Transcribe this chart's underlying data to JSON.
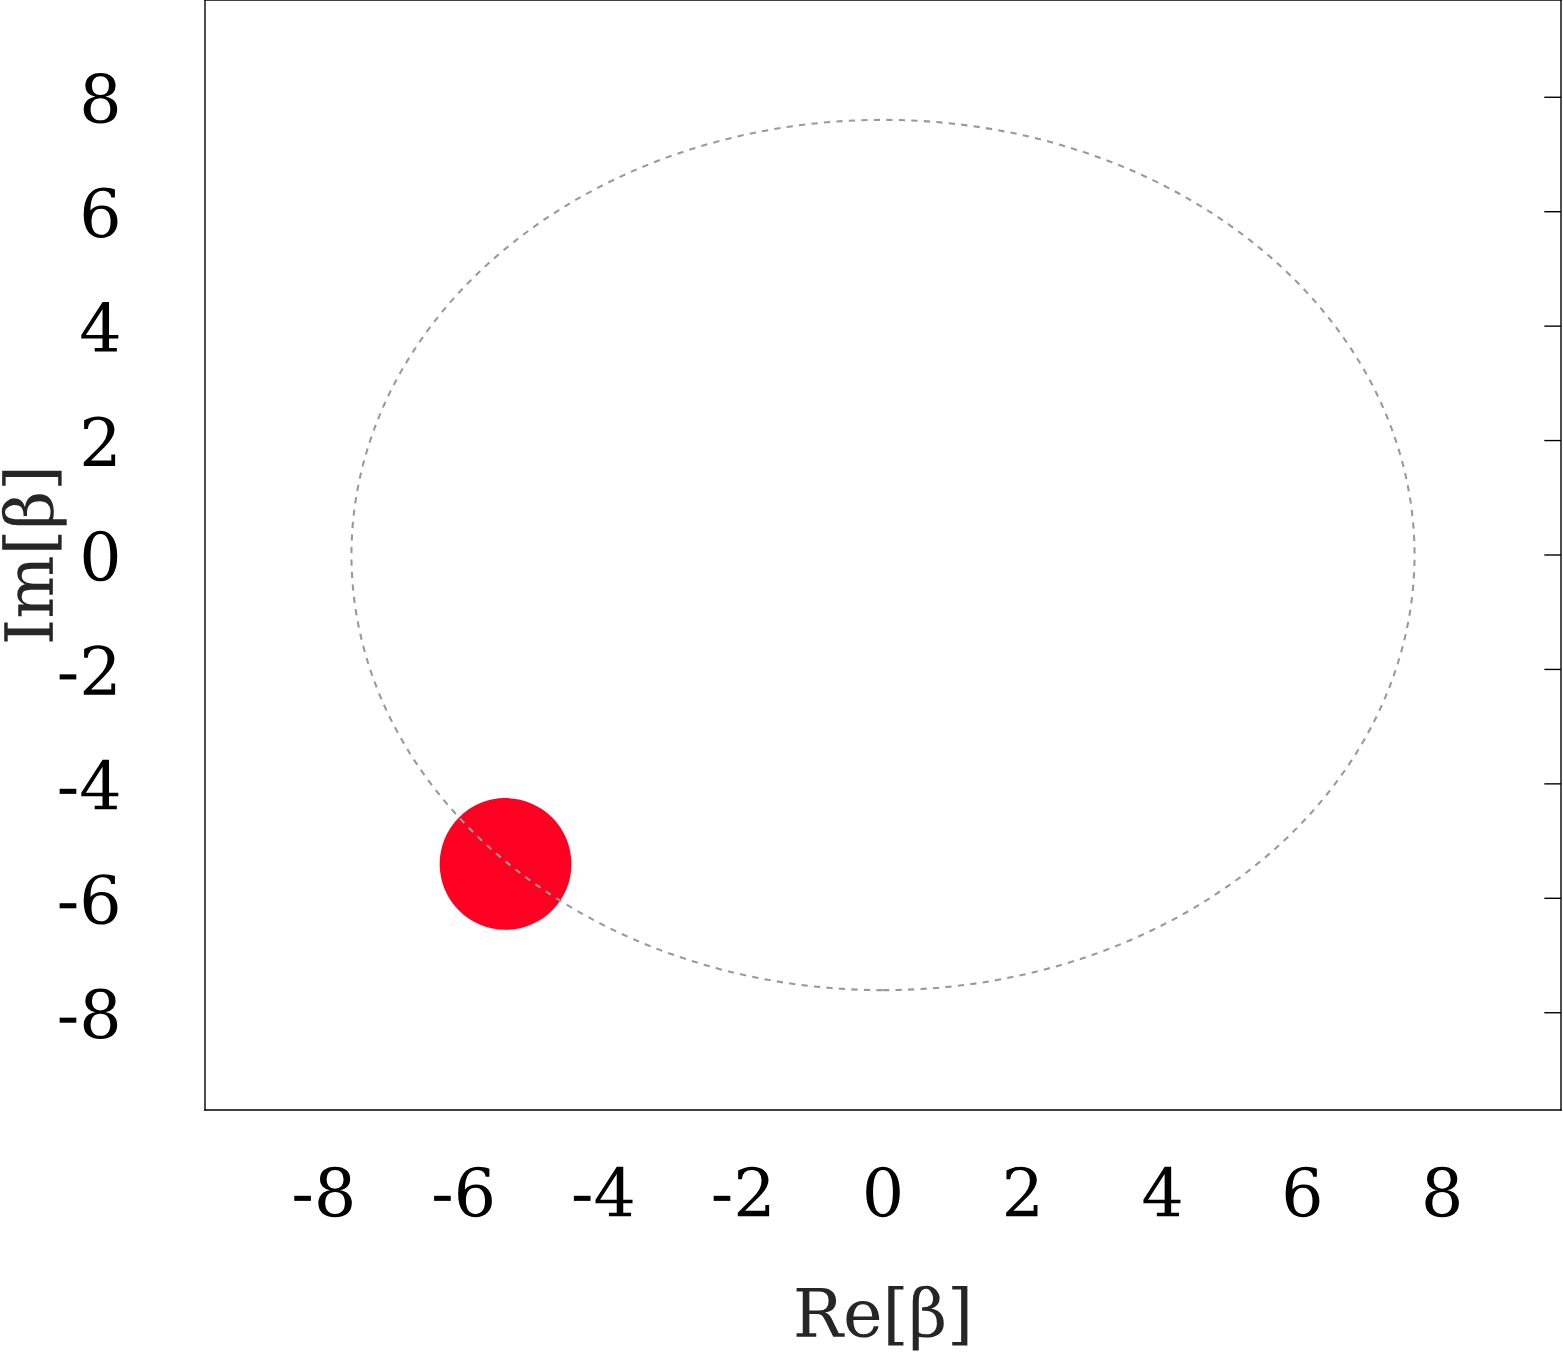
{
  "chart_data": {
    "type": "scatter",
    "xlabel": "Re[β]",
    "ylabel": "Im[β]",
    "xlim": [
      -9.7,
      9.7
    ],
    "ylim": [
      -9.7,
      9.7
    ],
    "xticks": [
      -8,
      -6,
      -4,
      -2,
      0,
      2,
      4,
      6,
      8
    ],
    "yticks": [
      -8,
      -6,
      -4,
      -2,
      0,
      2,
      4,
      6,
      8
    ],
    "grid": false,
    "legend": false,
    "marker": "circle",
    "series": [
      {
        "color": "#ff0022",
        "x": [
          -5.4
        ],
        "values": [
          -5.4
        ]
      }
    ]
  }
}
